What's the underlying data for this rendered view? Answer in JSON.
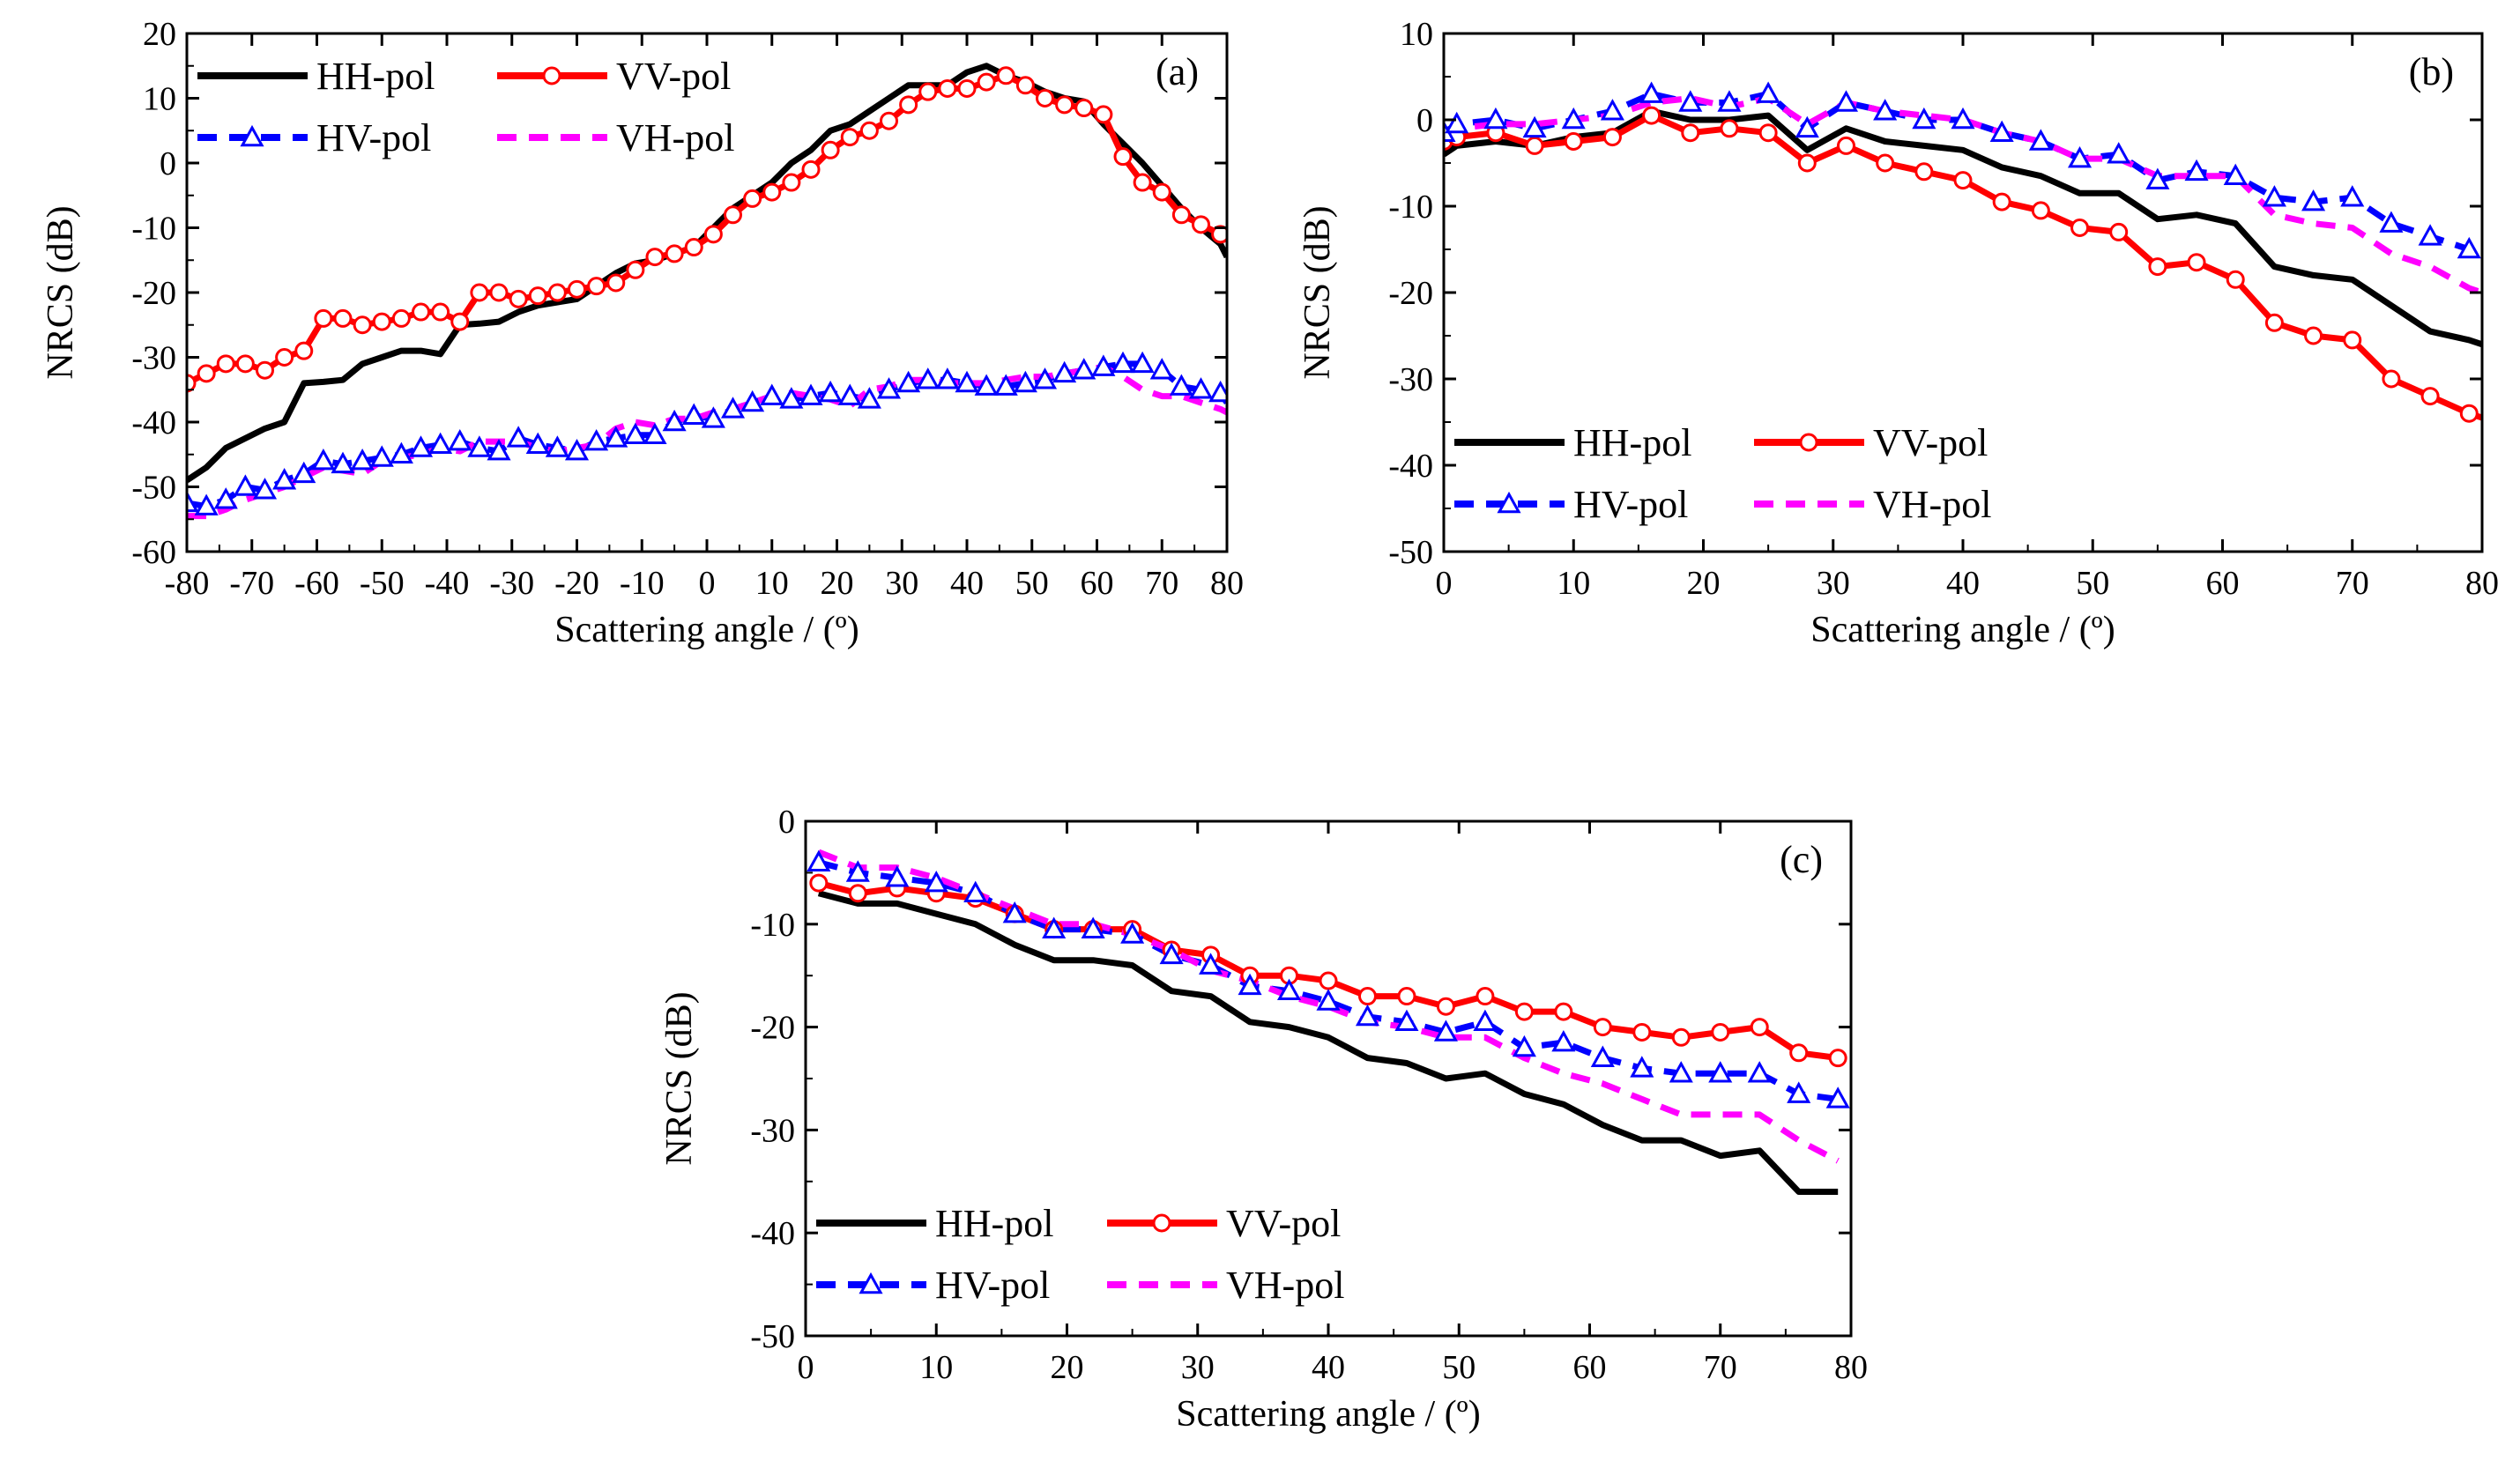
{
  "figure": {
    "series_styles": {
      "HH-pol": {
        "color": "#000000",
        "dash": "none",
        "marker": "none"
      },
      "VV-pol": {
        "color": "#ff0000",
        "dash": "none",
        "marker": "circle"
      },
      "HV-pol": {
        "color": "#0000ff",
        "dash": "dashed",
        "marker": "triangle"
      },
      "VH-pol": {
        "color": "#ff00ff",
        "dash": "dashed",
        "marker": "none"
      }
    }
  },
  "chart_data": [
    {
      "id": "a",
      "type": "line",
      "panel_label": "(a)",
      "xlabel": "Scattering angle / (º)",
      "ylabel": "NRCS (dB)",
      "xlim": [
        -80,
        80
      ],
      "ylim": [
        -60,
        20
      ],
      "xticks": [
        -80,
        -70,
        -60,
        -50,
        -40,
        -30,
        -20,
        -10,
        0,
        10,
        20,
        30,
        40,
        50,
        60,
        70,
        80
      ],
      "xtick_labels": [
        "-80",
        "-70",
        "-60",
        "-50",
        "-40",
        "-30",
        "-20",
        "-10",
        "0",
        "10",
        "20",
        "30",
        "40",
        "50",
        "60",
        "70",
        "80"
      ],
      "yticks": [
        -60,
        -50,
        -40,
        -30,
        -20,
        -10,
        0,
        10,
        20
      ],
      "ytick_labels": [
        "-60",
        "-50",
        "-40",
        "-30",
        "-20",
        "-10",
        "0",
        "10",
        "20"
      ],
      "legend_position": "top-left",
      "legend_entries": [
        "HH-pol",
        "VV-pol",
        "HV-pol",
        "VH-pol"
      ],
      "series": [
        {
          "name": "HH-pol",
          "x": [
            -80,
            -77,
            -74,
            -71,
            -68,
            -65,
            -62,
            -59,
            -56,
            -53,
            -50,
            -47,
            -44,
            -41,
            -38,
            -35,
            -32,
            -29,
            -26,
            -23,
            -20,
            -17,
            -14,
            -11,
            -8,
            -5,
            -2,
            1,
            4,
            7,
            10,
            13,
            16,
            19,
            22,
            25,
            28,
            31,
            34,
            37,
            40,
            43,
            46,
            49,
            52,
            55,
            58,
            61,
            64,
            67,
            70,
            73,
            76,
            79,
            80
          ],
          "y": [
            -49,
            -47,
            -44,
            -42.5,
            -41,
            -40,
            -34,
            -33.8,
            -33.5,
            -31,
            -30,
            -29,
            -29,
            -29.5,
            -25,
            -24.8,
            -24.5,
            -23,
            -22,
            -21.5,
            -21,
            -19,
            -17,
            -15.5,
            -15,
            -14,
            -13,
            -10,
            -7,
            -5,
            -3,
            0,
            2,
            5,
            6,
            8,
            10,
            12,
            12,
            12,
            14,
            15,
            13.5,
            12.5,
            11,
            10,
            9.5,
            6,
            3,
            0,
            -3.5,
            -7,
            -10,
            -12.5,
            -14.5
          ]
        },
        {
          "name": "VV-pol",
          "x": [
            -80,
            -77,
            -74,
            -71,
            -68,
            -65,
            -62,
            -59,
            -56,
            -53,
            -50,
            -47,
            -44,
            -41,
            -38,
            -35,
            -32,
            -29,
            -26,
            -23,
            -20,
            -17,
            -14,
            -11,
            -8,
            -5,
            -2,
            1,
            4,
            7,
            10,
            13,
            16,
            19,
            22,
            25,
            28,
            31,
            34,
            37,
            40,
            43,
            46,
            49,
            52,
            55,
            58,
            61,
            64,
            67,
            70,
            73,
            76,
            79,
            80
          ],
          "y": [
            -34,
            -32.5,
            -31,
            -31,
            -32,
            -30,
            -29,
            -24,
            -24,
            -25,
            -24.5,
            -24,
            -23,
            -23,
            -24.5,
            -20,
            -20,
            -21,
            -20.5,
            -20,
            -19.5,
            -19,
            -18.5,
            -16.5,
            -14.5,
            -14,
            -13,
            -11,
            -8,
            -5.5,
            -4.5,
            -3,
            -1,
            2,
            4,
            5,
            6.5,
            9,
            11,
            11.5,
            11.5,
            12.5,
            13.5,
            12,
            10,
            9,
            8.5,
            7.5,
            1,
            -3,
            -4.5,
            -8,
            -9.5,
            -11,
            -12
          ]
        },
        {
          "name": "HV-pol",
          "x": [
            -80,
            -77,
            -74,
            -71,
            -68,
            -65,
            -62,
            -59,
            -56,
            -53,
            -50,
            -47,
            -44,
            -41,
            -38,
            -35,
            -32,
            -29,
            -26,
            -23,
            -20,
            -17,
            -14,
            -11,
            -8,
            -5,
            -2,
            1,
            4,
            7,
            10,
            13,
            16,
            19,
            22,
            25,
            28,
            31,
            34,
            37,
            40,
            43,
            46,
            49,
            52,
            55,
            58,
            61,
            64,
            67,
            70,
            73,
            76,
            79,
            80
          ],
          "y": [
            -52.5,
            -53,
            -52,
            -50,
            -50.5,
            -49,
            -48,
            -46,
            -46.5,
            -46,
            -45.5,
            -45,
            -44,
            -43.5,
            -43,
            -44,
            -44.5,
            -42.5,
            -43.5,
            -44,
            -44.5,
            -43,
            -42.5,
            -42,
            -42,
            -40,
            -39,
            -39.5,
            -38,
            -37,
            -36,
            -36.5,
            -36,
            -35.5,
            -36,
            -36.5,
            -35,
            -34,
            -33.5,
            -33.5,
            -34,
            -34.5,
            -34.5,
            -34,
            -33.5,
            -32.5,
            -32,
            -31.5,
            -31,
            -31,
            -32,
            -34.5,
            -35,
            -35.5,
            -37
          ]
        },
        {
          "name": "VH-pol",
          "x": [
            -80,
            -77,
            -74,
            -71,
            -68,
            -65,
            -62,
            -59,
            -56,
            -53,
            -50,
            -47,
            -44,
            -41,
            -38,
            -35,
            -32,
            -29,
            -26,
            -23,
            -20,
            -17,
            -14,
            -11,
            -8,
            -5,
            -2,
            1,
            4,
            7,
            10,
            13,
            16,
            19,
            22,
            25,
            28,
            31,
            34,
            37,
            40,
            43,
            46,
            49,
            52,
            55,
            58,
            61,
            64,
            67,
            70,
            73,
            76,
            79,
            80
          ],
          "y": [
            -54.5,
            -54.5,
            -53.5,
            -52,
            -51,
            -50,
            -48.5,
            -47,
            -47.5,
            -48,
            -46,
            -45.5,
            -45,
            -44,
            -44.5,
            -43,
            -43,
            -43,
            -44,
            -44.5,
            -44,
            -43.5,
            -41,
            -40,
            -40.5,
            -39.5,
            -39.5,
            -38.5,
            -38,
            -37,
            -36,
            -35.5,
            -36,
            -36.5,
            -37.5,
            -35,
            -34.5,
            -33.5,
            -33.5,
            -34,
            -34,
            -34,
            -33.5,
            -33,
            -33,
            -32.5,
            -32,
            -31.5,
            -33,
            -35,
            -36,
            -36,
            -37,
            -38,
            -38.5
          ]
        }
      ]
    },
    {
      "id": "b",
      "type": "line",
      "panel_label": "(b)",
      "xlabel": "Scattering angle / (º)",
      "ylabel": "NRCS (dB)",
      "xlim": [
        0,
        80
      ],
      "ylim": [
        -50,
        10
      ],
      "xticks": [
        0,
        10,
        20,
        30,
        40,
        50,
        60,
        70,
        80
      ],
      "xtick_labels": [
        "0",
        "10",
        "20",
        "30",
        "40",
        "50",
        "60",
        "70",
        "80"
      ],
      "yticks": [
        -50,
        -40,
        -30,
        -20,
        -10,
        0,
        10
      ],
      "ytick_labels": [
        "-50",
        "-40",
        "-30",
        "-20",
        "-10",
        "0",
        "10"
      ],
      "legend_position": "bottom-left",
      "legend_entries": [
        "HH-pol",
        "VV-pol",
        "HV-pol",
        "VH-pol"
      ],
      "series": [
        {
          "name": "HH-pol",
          "x": [
            0,
            1,
            4,
            7,
            10,
            13,
            16,
            19,
            22,
            25,
            28,
            31,
            34,
            37,
            40,
            43,
            46,
            49,
            52,
            55,
            58,
            61,
            64,
            67,
            70,
            73,
            76,
            79,
            80
          ],
          "y": [
            -4,
            -3,
            -2.5,
            -3,
            -2,
            -1.5,
            1,
            0,
            0,
            0.5,
            -3.5,
            -1,
            -2.5,
            -3,
            -3.5,
            -5.5,
            -6.5,
            -8.5,
            -8.5,
            -11.5,
            -11,
            -12,
            -17,
            -18,
            -18.5,
            -21.5,
            -24.5,
            -25.5,
            -26
          ]
        },
        {
          "name": "VV-pol",
          "x": [
            0,
            1,
            4,
            7,
            10,
            13,
            16,
            19,
            22,
            25,
            28,
            31,
            34,
            37,
            40,
            43,
            46,
            49,
            52,
            55,
            58,
            61,
            64,
            67,
            70,
            73,
            76,
            79,
            80
          ],
          "y": [
            -2.5,
            -2,
            -1.5,
            -3,
            -2.5,
            -2,
            0.5,
            -1.5,
            -1,
            -1.5,
            -5,
            -3,
            -5,
            -6,
            -7,
            -9.5,
            -10.5,
            -12.5,
            -13,
            -17,
            -16.5,
            -18.5,
            -23.5,
            -25,
            -25.5,
            -30,
            -32,
            -34,
            -34.5
          ]
        },
        {
          "name": "HV-pol",
          "x": [
            0,
            1,
            4,
            7,
            10,
            13,
            16,
            19,
            22,
            25,
            28,
            31,
            34,
            37,
            40,
            43,
            46,
            49,
            52,
            55,
            58,
            61,
            64,
            67,
            70,
            73,
            76,
            79,
            80
          ],
          "y": [
            -1.5,
            -0.5,
            0,
            -1,
            0,
            1,
            3,
            2,
            2,
            3,
            -1,
            2,
            1,
            0,
            0,
            -1.5,
            -2.5,
            -4.5,
            -4,
            -7,
            -6,
            -6.5,
            -9,
            -9.5,
            -9,
            -12,
            -13.5,
            -15,
            -15
          ]
        },
        {
          "name": "VH-pol",
          "x": [
            0,
            1,
            4,
            7,
            10,
            13,
            16,
            19,
            22,
            25,
            28,
            31,
            34,
            37,
            40,
            43,
            46,
            49,
            52,
            55,
            58,
            61,
            64,
            67,
            70,
            73,
            76,
            79,
            80
          ],
          "y": [
            -1.5,
            -1,
            -0.5,
            -0.5,
            0,
            0.5,
            2,
            2.5,
            1.5,
            2.5,
            -0.5,
            2,
            1,
            0.5,
            0,
            -1.5,
            -2.5,
            -4.5,
            -4.5,
            -6.5,
            -6.5,
            -6.5,
            -11,
            -12,
            -12.5,
            -15.5,
            -17,
            -19.5,
            -20
          ]
        }
      ]
    },
    {
      "id": "c",
      "type": "line",
      "panel_label": "(c)",
      "xlabel": "Scattering angle / (º)",
      "ylabel": "NRCS (dB)",
      "xlim": [
        0,
        80
      ],
      "ylim": [
        -50,
        0
      ],
      "xticks": [
        0,
        10,
        20,
        30,
        40,
        50,
        60,
        70,
        80
      ],
      "xtick_labels": [
        "0",
        "10",
        "20",
        "30",
        "40",
        "50",
        "60",
        "70",
        "80"
      ],
      "yticks": [
        -50,
        -40,
        -30,
        -20,
        -10,
        0
      ],
      "ytick_labels": [
        "-50",
        "-40",
        "-30",
        "-20",
        "-10",
        "0"
      ],
      "legend_position": "bottom-left",
      "legend_entries": [
        "HH-pol",
        "VV-pol",
        "HV-pol",
        "VH-pol"
      ],
      "series": [
        {
          "name": "HH-pol",
          "x": [
            1,
            4,
            7,
            10,
            13,
            16,
            19,
            22,
            25,
            28,
            31,
            34,
            37,
            40,
            43,
            46,
            49,
            52,
            55,
            58,
            61,
            64,
            67,
            70,
            73,
            76,
            79
          ],
          "y": [
            -7,
            -8,
            -8,
            -9,
            -10,
            -12,
            -13.5,
            -13.5,
            -14,
            -16.5,
            -17,
            -19.5,
            -20,
            -21,
            -23,
            -23.5,
            -25,
            -24.5,
            -26.5,
            -27.5,
            -29.5,
            -31,
            -31,
            -32.5,
            -32,
            -36,
            -36
          ]
        },
        {
          "name": "VV-pol",
          "x": [
            1,
            4,
            7,
            10,
            13,
            16,
            19,
            22,
            25,
            28,
            31,
            34,
            37,
            40,
            43,
            46,
            49,
            52,
            55,
            58,
            61,
            64,
            67,
            70,
            73,
            76,
            79
          ],
          "y": [
            -6,
            -7,
            -6.5,
            -7,
            -7.5,
            -9,
            -10.5,
            -10.5,
            -10.5,
            -12.5,
            -13,
            -15,
            -15,
            -15.5,
            -17,
            -17,
            -18,
            -17,
            -18.5,
            -18.5,
            -20,
            -20.5,
            -21,
            -20.5,
            -20,
            -22.5,
            -23
          ]
        },
        {
          "name": "HV-pol",
          "x": [
            1,
            4,
            7,
            10,
            13,
            16,
            19,
            22,
            25,
            28,
            31,
            34,
            37,
            40,
            43,
            46,
            49,
            52,
            55,
            58,
            61,
            64,
            67,
            70,
            73,
            76,
            79
          ],
          "y": [
            -4,
            -5,
            -5.5,
            -6,
            -7,
            -9,
            -10.5,
            -10.5,
            -11,
            -13,
            -14,
            -16,
            -16.5,
            -17.5,
            -19,
            -19.5,
            -20.5,
            -19.5,
            -22,
            -21.5,
            -23,
            -24,
            -24.5,
            -24.5,
            -24.5,
            -26.5,
            -27
          ]
        },
        {
          "name": "VH-pol",
          "x": [
            1,
            4,
            7,
            10,
            13,
            16,
            19,
            22,
            25,
            28,
            31,
            34,
            37,
            40,
            43,
            46,
            49,
            52,
            55,
            58,
            61,
            64,
            67,
            70,
            73,
            76,
            79
          ],
          "y": [
            -3,
            -4.5,
            -4.5,
            -5.5,
            -7,
            -8.5,
            -10,
            -10,
            -11,
            -12.5,
            -14.5,
            -15.5,
            -17,
            -18,
            -19.5,
            -20,
            -21,
            -21,
            -23,
            -24.5,
            -25.5,
            -27,
            -28.5,
            -28.5,
            -28.5,
            -31,
            -33
          ]
        }
      ]
    }
  ]
}
